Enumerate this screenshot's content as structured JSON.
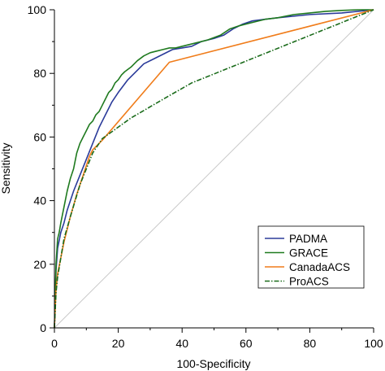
{
  "chart_data": {
    "type": "line",
    "title": "",
    "xlabel": "100-Specificity",
    "ylabel": "Sensitivity",
    "xlim": [
      0,
      100
    ],
    "ylim": [
      0,
      100
    ],
    "xticks": [
      0,
      20,
      40,
      60,
      80,
      100
    ],
    "yticks": [
      0,
      20,
      40,
      60,
      80,
      100
    ],
    "grid": false,
    "legend_position": "bottom-right",
    "reference_line": {
      "x": [
        0,
        100
      ],
      "y": [
        0,
        100
      ],
      "color": "#c8c8c8"
    },
    "series": [
      {
        "name": "PADMA",
        "color": "#2b3b9a",
        "dash": "solid",
        "x": [
          0,
          0.5,
          1,
          2,
          3,
          4,
          5,
          6,
          8,
          10,
          12,
          14,
          16,
          18,
          20,
          23,
          26,
          28,
          31,
          34,
          37,
          40,
          43,
          46,
          50,
          53,
          56,
          59,
          62,
          66,
          70,
          80,
          90,
          95,
          100
        ],
        "y": [
          0,
          18,
          25,
          30,
          33,
          37,
          40,
          43,
          48,
          53,
          58,
          63,
          67,
          71,
          74,
          78,
          81,
          83,
          84.5,
          86,
          87.5,
          88,
          88.5,
          90,
          91,
          92,
          94,
          95.5,
          96.5,
          97,
          97.5,
          98.5,
          99,
          99.5,
          100
        ]
      },
      {
        "name": "GRACE",
        "color": "#1f7a1f",
        "dash": "solid",
        "x": [
          0,
          0.5,
          1,
          1.5,
          2,
          3,
          4,
          5,
          6,
          7,
          8,
          9,
          10,
          11,
          12,
          13,
          14,
          15,
          16,
          17,
          18,
          19,
          20,
          21,
          22,
          24,
          26,
          28,
          30,
          32,
          34,
          36,
          38,
          40,
          44,
          48,
          52,
          55,
          58,
          62,
          66,
          70,
          75,
          80,
          85,
          90,
          95,
          100
        ],
        "y": [
          0,
          20,
          28,
          30,
          33,
          38,
          43,
          47,
          50,
          55,
          58,
          60,
          62,
          64,
          65,
          67,
          68,
          70,
          72,
          74,
          75,
          77,
          78,
          79.5,
          80.5,
          82,
          84,
          85.5,
          86.5,
          87,
          87.5,
          88,
          88,
          88.5,
          89.5,
          90.5,
          92,
          94,
          95,
          96,
          97,
          97.5,
          98.5,
          99,
          99.5,
          99.8,
          100,
          100
        ]
      },
      {
        "name": "CanadaACS",
        "color": "#f07c1a",
        "dash": "solid",
        "x": [
          0,
          0.5,
          1,
          2,
          3,
          5,
          7,
          9,
          11,
          12,
          15,
          36,
          100
        ],
        "y": [
          0,
          12,
          17,
          22,
          27,
          35,
          42,
          48,
          54,
          56,
          59,
          83.5,
          100
        ]
      },
      {
        "name": "ProACS",
        "color": "#1a6b1a",
        "dash": "dashdot",
        "x": [
          0,
          0.5,
          1,
          2,
          3,
          5,
          8,
          12,
          15,
          24,
          36,
          43,
          100
        ],
        "y": [
          0,
          11,
          16,
          22,
          28,
          35,
          45,
          55,
          59.5,
          66,
          73,
          77,
          100
        ]
      }
    ]
  }
}
